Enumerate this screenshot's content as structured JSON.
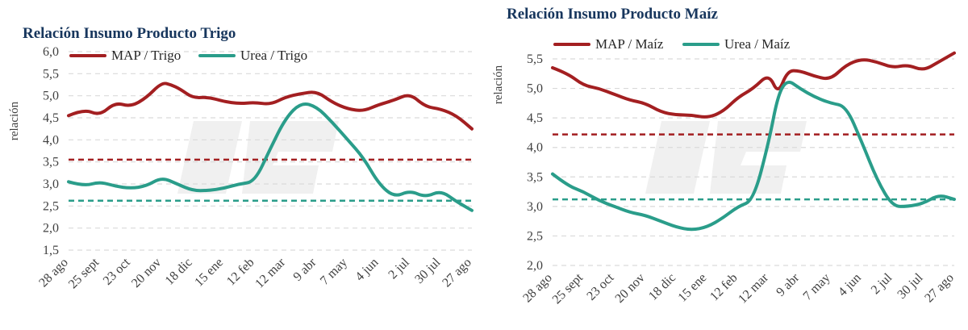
{
  "colors": {
    "map": "#a31f21",
    "urea": "#2a9d8a",
    "title": "#17365d",
    "grid": "#d9d9d9"
  },
  "chart_data": [
    {
      "type": "line",
      "title": "Relación Insumo Producto Trigo",
      "ylabel": "relación",
      "xlabel": "",
      "ylim": [
        1.5,
        6.0
      ],
      "yticks": [
        "1,5",
        "2,0",
        "2,5",
        "3,0",
        "3,5",
        "4,0",
        "4,5",
        "5,0",
        "5,5",
        "6,0"
      ],
      "categories": [
        "28 ago",
        "25 sept",
        "23 oct",
        "20 nov",
        "18 dic",
        "15 ene",
        "12 feb",
        "12 mar",
        "9 abr",
        "7 may",
        "4 jun",
        "2 jul",
        "30 jul",
        "27 ago"
      ],
      "grid": true,
      "legend": "top",
      "series": [
        {
          "name": "MAP / Trigo",
          "color": "map",
          "x": [
            0,
            0.5,
            1,
            1.5,
            2,
            2.5,
            3,
            3.3,
            3.6,
            4,
            4.5,
            5,
            5.5,
            6,
            6.5,
            7,
            7.5,
            8,
            8.5,
            9,
            9.5,
            10,
            10.5,
            11,
            11.5,
            12,
            12.5,
            13
          ],
          "values": [
            4.55,
            4.7,
            4.55,
            4.85,
            4.75,
            4.95,
            5.3,
            5.25,
            5.15,
            4.95,
            4.97,
            4.87,
            4.82,
            4.85,
            4.8,
            4.97,
            5.05,
            5.1,
            4.85,
            4.7,
            4.65,
            4.8,
            4.9,
            5.05,
            4.75,
            4.7,
            4.55,
            4.25
          ]
        },
        {
          "name": "Urea / Trigo",
          "color": "urea",
          "x": [
            0,
            0.5,
            1,
            1.5,
            2,
            2.5,
            3,
            3.5,
            4,
            4.5,
            5,
            5.5,
            6,
            6.5,
            7,
            7.5,
            8,
            8.5,
            9,
            9.5,
            10,
            10.5,
            11,
            11.5,
            12,
            12.5,
            13
          ],
          "values": [
            3.05,
            2.95,
            3.05,
            2.95,
            2.9,
            2.95,
            3.15,
            3.0,
            2.85,
            2.85,
            2.9,
            3.0,
            3.05,
            3.8,
            4.5,
            4.85,
            4.75,
            4.4,
            4.0,
            3.6,
            3.0,
            2.7,
            2.85,
            2.7,
            2.85,
            2.6,
            2.4
          ]
        }
      ],
      "reference_lines": [
        {
          "value": 3.55,
          "color": "map"
        },
        {
          "value": 2.62,
          "color": "urea"
        }
      ]
    },
    {
      "type": "line",
      "title": "Relación Insumo Producto Maíz",
      "ylabel": "relación",
      "xlabel": "",
      "ylim": [
        2.0,
        5.5
      ],
      "yticks": [
        "2,0",
        "2,5",
        "3,0",
        "3,5",
        "4,0",
        "4,5",
        "5,0",
        "5,5"
      ],
      "categories": [
        "28 ago",
        "25 sept",
        "23 oct",
        "20 nov",
        "18 dic",
        "15 ene",
        "12 feb",
        "12 mar",
        "9 abr",
        "7 may",
        "4 jun",
        "2 jul",
        "30 jul",
        "27 ago"
      ],
      "grid": true,
      "legend": "top",
      "series": [
        {
          "name": "MAP / Maíz",
          "color": "map",
          "x": [
            0,
            0.5,
            1,
            1.5,
            2,
            2.5,
            3,
            3.5,
            4,
            4.5,
            5,
            5.5,
            6,
            6.5,
            7,
            7.3,
            7.6,
            8,
            8.5,
            9,
            9.5,
            10,
            10.5,
            11,
            11.5,
            12,
            12.5,
            13
          ],
          "values": [
            5.35,
            5.25,
            5.05,
            5.0,
            4.9,
            4.8,
            4.75,
            4.6,
            4.55,
            4.55,
            4.5,
            4.6,
            4.85,
            5.0,
            5.25,
            4.9,
            5.3,
            5.3,
            5.2,
            5.15,
            5.4,
            5.5,
            5.45,
            5.35,
            5.4,
            5.3,
            5.45,
            5.6
          ]
        },
        {
          "name": "Urea / Maíz",
          "color": "urea",
          "x": [
            0,
            0.5,
            1,
            1.5,
            2,
            2.5,
            3,
            3.5,
            4,
            4.5,
            5,
            5.5,
            6,
            6.5,
            7,
            7.3,
            7.6,
            8,
            8.5,
            9,
            9.5,
            10,
            10.5,
            11,
            11.5,
            12,
            12.5,
            13
          ],
          "values": [
            3.55,
            3.35,
            3.25,
            3.1,
            3.0,
            2.9,
            2.85,
            2.75,
            2.65,
            2.6,
            2.65,
            2.8,
            3.0,
            3.1,
            4.1,
            4.9,
            5.15,
            5.0,
            4.85,
            4.75,
            4.7,
            4.1,
            3.45,
            3.0,
            3.0,
            3.05,
            3.2,
            3.12
          ]
        }
      ],
      "reference_lines": [
        {
          "value": 4.22,
          "color": "map"
        },
        {
          "value": 3.12,
          "color": "urea"
        }
      ]
    }
  ]
}
